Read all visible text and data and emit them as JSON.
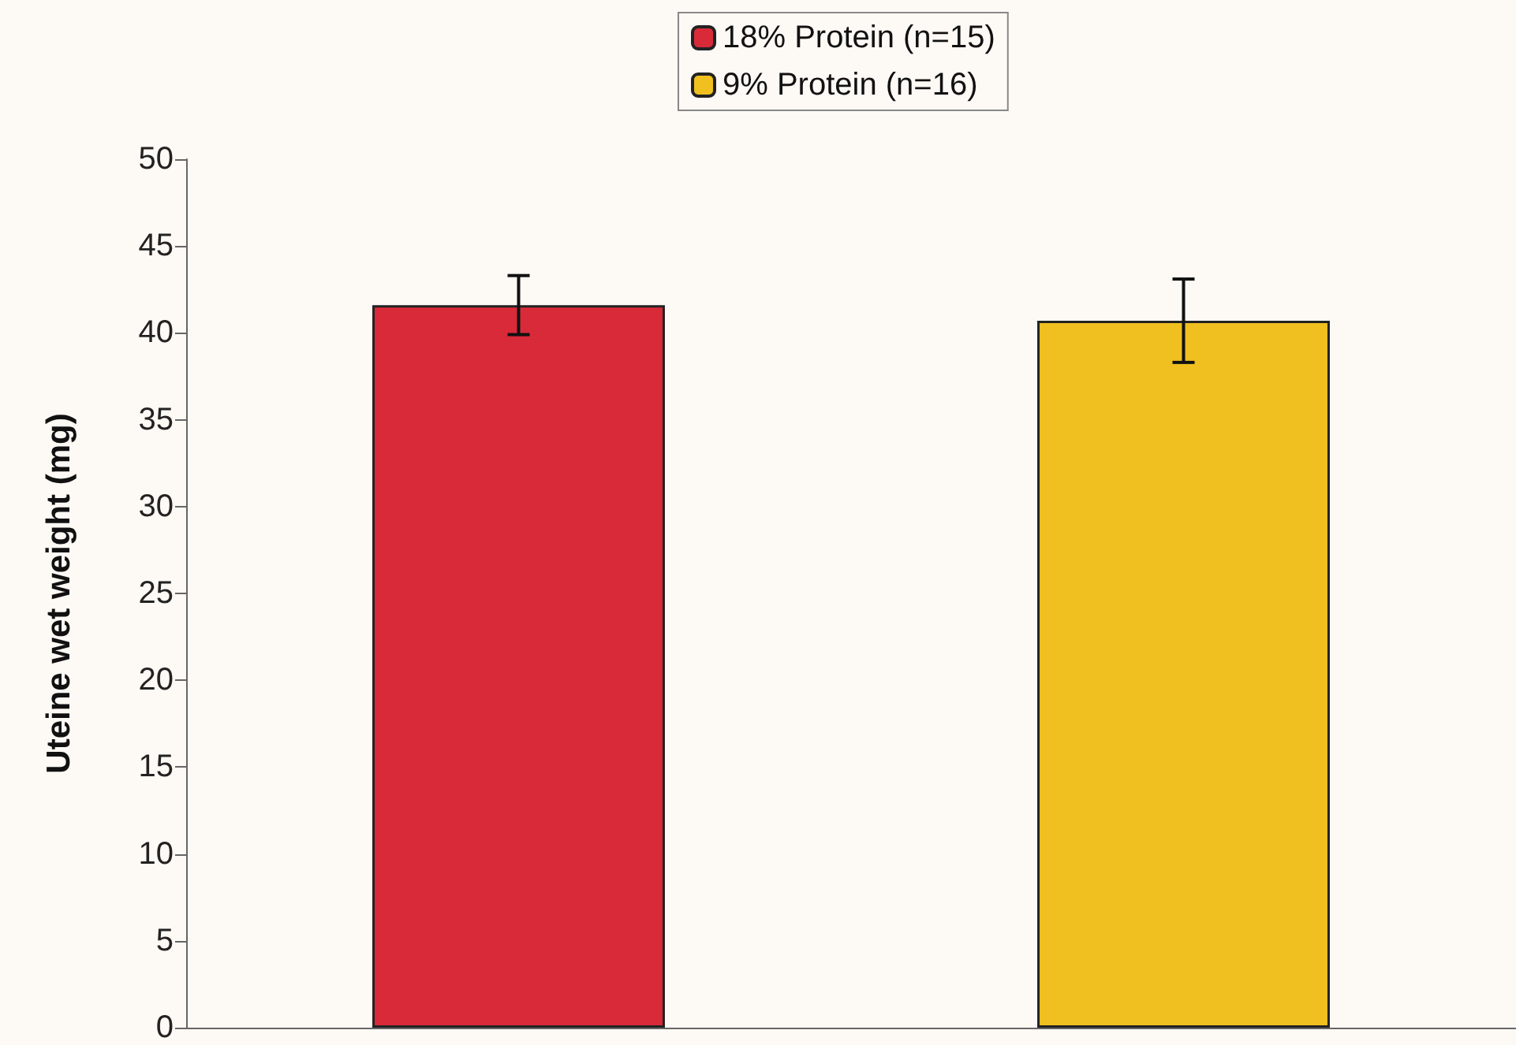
{
  "chart_data": {
    "type": "bar",
    "ylabel": "Uteine wet weight (mg)",
    "categories": [
      null,
      null
    ],
    "series": [
      {
        "name": "18% Protein (n=15)",
        "color": "#d92a3a",
        "values": [
          41.6,
          null
        ],
        "errors": [
          1.7,
          null
        ]
      },
      {
        "name": "9% Protein (n=16)",
        "color": "#f0c020",
        "values": [
          null,
          40.7
        ],
        "errors": [
          null,
          2.4
        ]
      }
    ],
    "ylim": [
      0,
      50
    ],
    "yticks": [
      0,
      5,
      10,
      15,
      20,
      25,
      30,
      35,
      40,
      45,
      50
    ],
    "grid": false,
    "legend": "top"
  }
}
